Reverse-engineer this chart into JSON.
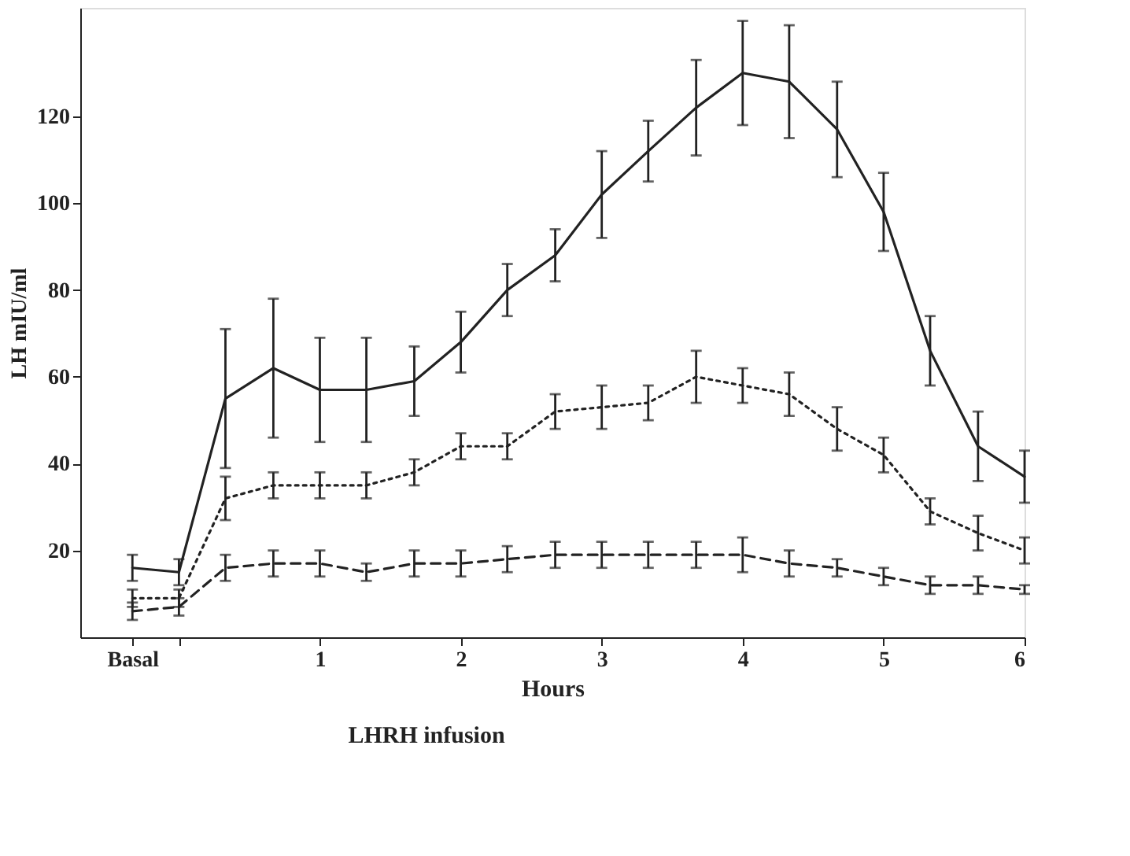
{
  "chart_data": {
    "type": "line",
    "xlabel": "Hours",
    "ylabel": "LH mIU/ml",
    "annotations": [
      "LHRH infusion"
    ],
    "x": [
      -0.33,
      0,
      0.33,
      0.67,
      1,
      1.33,
      1.67,
      2,
      2.33,
      2.67,
      3,
      3.33,
      3.67,
      4,
      4.33,
      4.67,
      5,
      5.33,
      5.67,
      6
    ],
    "xlim": [
      -0.7,
      6
    ],
    "xticks": [
      {
        "value": -0.33,
        "label": "Basal"
      },
      {
        "value": 0,
        "label": null
      },
      1,
      2,
      3,
      4,
      5,
      6
    ],
    "ylim": [
      0,
      145
    ],
    "yticks": [
      20,
      40,
      60,
      80,
      100,
      120
    ],
    "grid": false,
    "marker": "none",
    "series": [
      {
        "color": "#222222",
        "line_style": "solid",
        "values": [
          16,
          15,
          55,
          62,
          57,
          57,
          59,
          68,
          80,
          88,
          102,
          112,
          122,
          130,
          128,
          117,
          98,
          66,
          44,
          37
        ],
        "errors": [
          3,
          3,
          16,
          16,
          12,
          12,
          8,
          7,
          6,
          6,
          10,
          7,
          11,
          12,
          13,
          11,
          9,
          8,
          8,
          6
        ]
      },
      {
        "color": "#222222",
        "line_style": "dotted",
        "values": [
          9,
          9,
          32,
          35,
          35,
          35,
          38,
          44,
          44,
          52,
          53,
          54,
          60,
          58,
          56,
          48,
          42,
          29,
          24,
          20
        ],
        "errors": [
          2,
          2,
          5,
          3,
          3,
          3,
          3,
          3,
          3,
          4,
          5,
          4,
          6,
          4,
          5,
          5,
          4,
          3,
          4,
          3
        ]
      },
      {
        "color": "#222222",
        "line_style": "dashed",
        "values": [
          6,
          7,
          16,
          17,
          17,
          15,
          17,
          17,
          18,
          19,
          19,
          19,
          19,
          19,
          17,
          16,
          14,
          12,
          12,
          11
        ],
        "errors": [
          2,
          2,
          3,
          3,
          3,
          2,
          3,
          3,
          3,
          3,
          3,
          3,
          3,
          4,
          3,
          2,
          2,
          2,
          2,
          1
        ]
      }
    ]
  }
}
